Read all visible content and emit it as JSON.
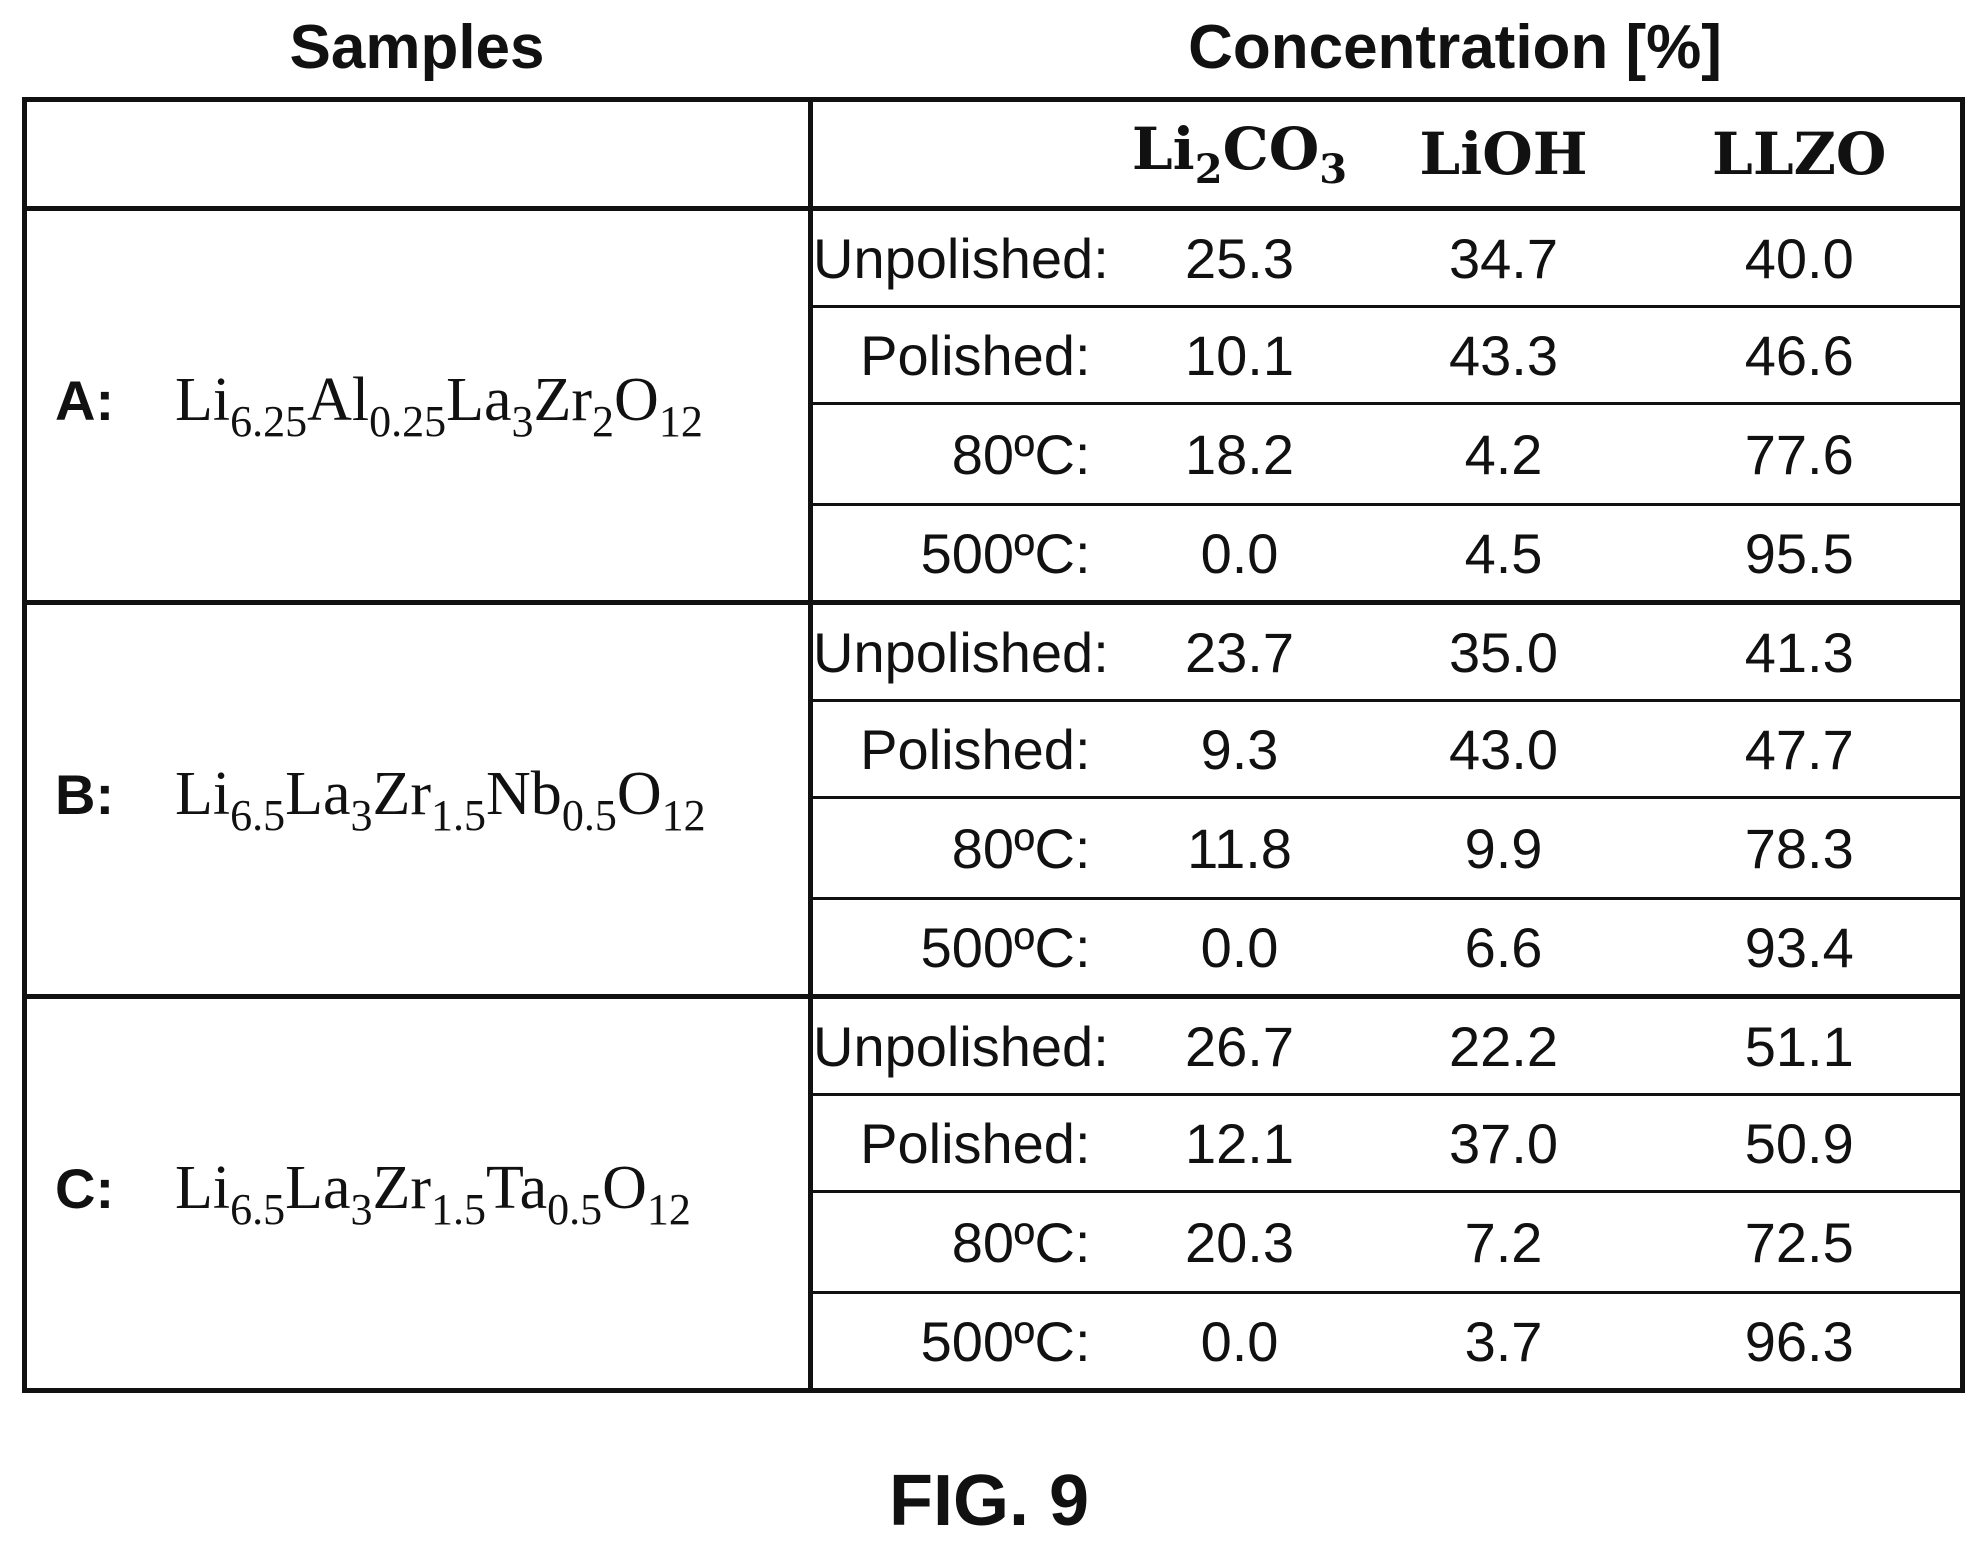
{
  "headers": {
    "samples": "Samples",
    "concentration": "Concentration [%]"
  },
  "columns": [
    {
      "base": "Li",
      "sub": "2",
      "base2": "CO",
      "sub2": "3"
    },
    {
      "base": "LiOH"
    },
    {
      "base": "LLZO"
    }
  ],
  "samples": [
    {
      "label": "A:",
      "formula": [
        {
          "el": "Li",
          "sub": "6.25"
        },
        {
          "el": "Al",
          "sub": "0.25"
        },
        {
          "el": "La",
          "sub": "3"
        },
        {
          "el": "Zr",
          "sub": "2"
        },
        {
          "el": "O",
          "sub": "12"
        }
      ],
      "rows": [
        {
          "condition": "Unpolished:",
          "li2co3": "25.3",
          "lioh": "34.7",
          "llzo": "40.0"
        },
        {
          "condition": "Polished:",
          "li2co3": "10.1",
          "lioh": "43.3",
          "llzo": "46.6"
        },
        {
          "condition": "80ºC:",
          "li2co3": "18.2",
          "lioh": "4.2",
          "llzo": "77.6"
        },
        {
          "condition": "500ºC:",
          "li2co3": "0.0",
          "lioh": "4.5",
          "llzo": "95.5"
        }
      ]
    },
    {
      "label": "B:",
      "formula": [
        {
          "el": "Li",
          "sub": "6.5"
        },
        {
          "el": "La",
          "sub": "3"
        },
        {
          "el": "Zr",
          "sub": "1.5"
        },
        {
          "el": "Nb",
          "sub": "0.5"
        },
        {
          "el": "O",
          "sub": "12"
        }
      ],
      "rows": [
        {
          "condition": "Unpolished:",
          "li2co3": "23.7",
          "lioh": "35.0",
          "llzo": "41.3"
        },
        {
          "condition": "Polished:",
          "li2co3": "9.3",
          "lioh": "43.0",
          "llzo": "47.7"
        },
        {
          "condition": "80ºC:",
          "li2co3": "11.8",
          "lioh": "9.9",
          "llzo": "78.3"
        },
        {
          "condition": "500ºC:",
          "li2co3": "0.0",
          "lioh": "6.6",
          "llzo": "93.4"
        }
      ]
    },
    {
      "label": "C:",
      "formula": [
        {
          "el": "Li",
          "sub": "6.5"
        },
        {
          "el": "La",
          "sub": "3"
        },
        {
          "el": "Zr",
          "sub": "1.5"
        },
        {
          "el": "Ta",
          "sub": "0.5"
        },
        {
          "el": "O",
          "sub": "12"
        }
      ],
      "rows": [
        {
          "condition": "Unpolished:",
          "li2co3": "26.7",
          "lioh": "22.2",
          "llzo": "51.1"
        },
        {
          "condition": "Polished:",
          "li2co3": "12.1",
          "lioh": "37.0",
          "llzo": "50.9"
        },
        {
          "condition": "80ºC:",
          "li2co3": "20.3",
          "lioh": "7.2",
          "llzo": "72.5"
        },
        {
          "condition": "500ºC:",
          "li2co3": "0.0",
          "lioh": "3.7",
          "llzo": "96.3"
        }
      ]
    }
  ],
  "figure_caption": "FIG. 9"
}
